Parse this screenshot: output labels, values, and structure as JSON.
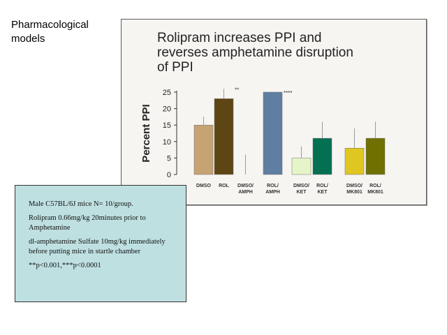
{
  "slide": {
    "heading_lines": [
      "Pharmacological",
      "models"
    ]
  },
  "chart_data": {
    "type": "bar",
    "title_lines": [
      "Rolipram increases PPI and",
      "reverses amphetamine disruption",
      "of PPI"
    ],
    "ylabel": "Percent PPI",
    "xlabel": "",
    "ylim": [
      0,
      25
    ],
    "yticks": [
      0,
      5,
      10,
      15,
      20,
      25
    ],
    "grid": false,
    "categories": [
      [
        "DMSO"
      ],
      [
        "ROL"
      ],
      [
        "DMSO/",
        "AMPH"
      ],
      [
        "ROL/",
        "AMPH"
      ],
      [
        "DMSO/",
        "KET"
      ],
      [
        "ROL/",
        "KET"
      ],
      [
        "DMSO/",
        "MK801"
      ],
      [
        "ROL/",
        "MK801"
      ]
    ],
    "values": [
      15,
      23,
      0,
      25,
      5,
      11,
      8,
      11
    ],
    "error_upper": [
      17.5,
      26,
      6,
      25,
      8.5,
      16,
      14,
      16
    ],
    "significance": [
      "",
      "**",
      "",
      "****",
      "",
      "",
      "",
      ""
    ],
    "bar_colors": [
      "#c6a373",
      "#5e4514",
      "#aaaaaa",
      "#5e7ea2",
      "#e6f5c8",
      "#047052",
      "#e0c621",
      "#707000"
    ]
  },
  "notes": {
    "lines": [
      "Male C57BL/6J mice N= 10/group.",
      "Rolipram 0.66mg/kg 20minutes prior to Amphetamine",
      "dl-amphetamine Sulfate 10mg/kg immediately before putting mice in startle chamber",
      "**p<0.001,***p<0.0001"
    ]
  }
}
